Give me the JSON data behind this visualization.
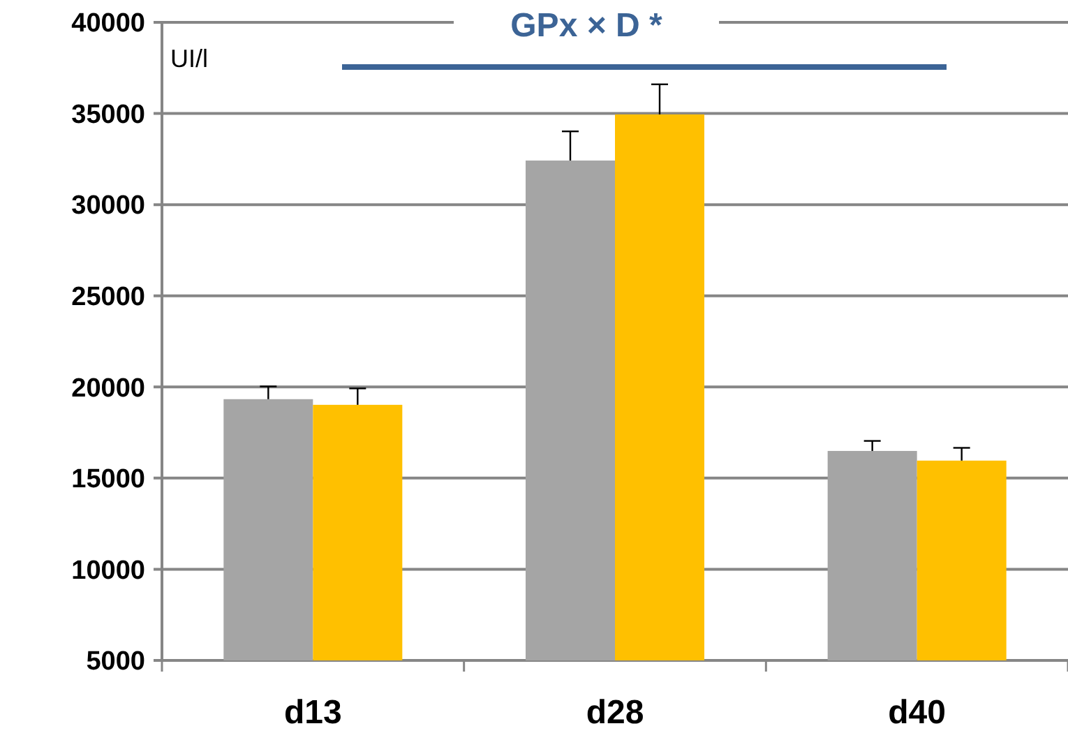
{
  "chart_data": {
    "type": "bar",
    "ylabel": "UI/l",
    "categories": [
      "d13",
      "d28",
      "d40"
    ],
    "series": [
      {
        "color": "#a5a5a5",
        "values": [
          19330,
          32420,
          16490
        ],
        "errors": [
          700,
          1600,
          550
        ]
      },
      {
        "color": "#ffc000",
        "values": [
          19020,
          34950,
          15960
        ],
        "errors": [
          900,
          1650,
          700
        ]
      }
    ],
    "ylim": [
      5000,
      40000
    ],
    "yticks": [
      5000,
      10000,
      15000,
      20000,
      25000,
      30000,
      35000,
      40000
    ],
    "grid": "y",
    "annotations": [
      "GPx × D *"
    ]
  }
}
